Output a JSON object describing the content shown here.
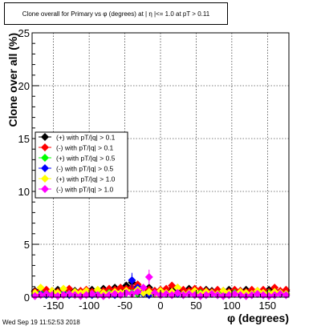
{
  "chart_data": {
    "type": "scatter",
    "title": "Clone  overall for Primary vs φ (degrees) at | η |<= 1.0 at pT > 0.11",
    "xlabel": "φ (degrees)",
    "ylabel": "Clone  over all (%)",
    "xlim": [
      -180,
      180
    ],
    "ylim": [
      0,
      25
    ],
    "xticks": [
      -150,
      -100,
      -50,
      0,
      50,
      100,
      150
    ],
    "yticks": [
      0,
      5,
      10,
      15,
      20,
      25
    ],
    "grid": true,
    "legend_position": "middle-left",
    "x": [
      -176,
      -168,
      -160,
      -152,
      -144,
      -136,
      -128,
      -120,
      -112,
      -104,
      -96,
      -88,
      -80,
      -72,
      -64,
      -56,
      -48,
      -40,
      -32,
      -24,
      -16,
      -8,
      0,
      8,
      16,
      24,
      32,
      40,
      48,
      56,
      64,
      72,
      80,
      88,
      96,
      104,
      112,
      120,
      128,
      136,
      144,
      152,
      160,
      168,
      176
    ],
    "series": [
      {
        "name": "(+) with pT/|q| > 0.1",
        "color": "#000000",
        "values": [
          0.6,
          0.7,
          0.6,
          0.5,
          0.7,
          0.6,
          0.7,
          0.6,
          0.5,
          0.6,
          0.7,
          0.6,
          0.8,
          0.7,
          0.9,
          0.8,
          1.1,
          1.4,
          1.0,
          0.7,
          0.9,
          0.6,
          0.5,
          0.6,
          0.8,
          0.7,
          0.6,
          0.8,
          0.6,
          0.5,
          0.7,
          0.6,
          0.5,
          0.6,
          0.7,
          0.5,
          0.6,
          0.7,
          0.6,
          0.5,
          0.6,
          0.7,
          0.6,
          0.5,
          0.6
        ]
      },
      {
        "name": "(-) with pT/|q| > 0.1",
        "color": "#ff0000",
        "values": [
          0.5,
          0.6,
          0.7,
          0.6,
          0.5,
          0.6,
          0.8,
          0.5,
          0.6,
          0.7,
          0.5,
          0.6,
          0.6,
          0.8,
          0.7,
          0.9,
          0.8,
          0.9,
          1.2,
          0.8,
          0.7,
          0.6,
          0.7,
          0.8,
          1.1,
          0.9,
          0.7,
          0.6,
          0.8,
          0.7,
          0.6,
          0.5,
          0.7,
          0.6,
          0.5,
          0.7,
          0.6,
          0.5,
          0.7,
          0.6,
          0.7,
          0.5,
          0.9,
          0.6,
          0.7
        ]
      },
      {
        "name": "(+) with pT/|q| > 0.5",
        "color": "#00ff00",
        "values": [
          0.3,
          0.4,
          0.3,
          0.4,
          0.3,
          0.4,
          0.3,
          0.4,
          0.3,
          0.4,
          0.3,
          0.4,
          0.3,
          0.4,
          0.3,
          0.4,
          0.5,
          0.4,
          0.3,
          0.4,
          0.3,
          0.4,
          0.3,
          0.4,
          0.3,
          0.4,
          0.3,
          0.4,
          0.3,
          0.4,
          0.3,
          0.4,
          0.3,
          0.4,
          0.3,
          0.4,
          0.3,
          0.4,
          0.3,
          0.4,
          0.3,
          0.4,
          0.3,
          0.4,
          0.3
        ]
      },
      {
        "name": "(-) with pT/|q| > 0.5",
        "color": "#0000ff",
        "values": [
          0.2,
          0.3,
          0.2,
          0.3,
          0.2,
          0.3,
          0.2,
          0.3,
          0.2,
          0.3,
          0.2,
          0.3,
          0.2,
          0.3,
          0.2,
          0.3,
          0.4,
          1.6,
          0.9,
          0.3,
          0.2,
          0.3,
          0.2,
          0.3,
          0.2,
          0.3,
          0.2,
          0.3,
          0.2,
          0.3,
          0.2,
          0.3,
          0.2,
          0.3,
          0.2,
          0.3,
          0.2,
          0.3,
          0.2,
          0.3,
          0.2,
          0.3,
          0.2,
          0.3,
          0.2
        ]
      },
      {
        "name": "(+) with pT/|q| > 1.0",
        "color": "#ffff00",
        "values": [
          0.4,
          0.9,
          0.3,
          0.6,
          0.4,
          0.8,
          0.3,
          0.5,
          0.4,
          0.6,
          0.3,
          0.7,
          0.4,
          0.3,
          0.5,
          0.4,
          0.6,
          0.3,
          0.7,
          0.4,
          0.5,
          0.3,
          0.6,
          0.4,
          0.5,
          0.9,
          0.3,
          0.4,
          0.6,
          0.3,
          0.5,
          0.4,
          0.3,
          0.6,
          0.4,
          0.3,
          0.5,
          0.4,
          0.3,
          0.6,
          0.4,
          0.3,
          0.5,
          0.4,
          0.3
        ]
      },
      {
        "name": "(-) with pT/|q| > 1.0",
        "color": "#ff00ff",
        "values": [
          0.1,
          0.2,
          0.3,
          0.2,
          0.1,
          0.2,
          0.3,
          0.2,
          0.1,
          0.2,
          0.3,
          0.2,
          0.1,
          0.2,
          0.3,
          0.2,
          0.4,
          0.3,
          0.5,
          0.9,
          1.9,
          0.4,
          0.2,
          0.3,
          0.2,
          0.4,
          0.2,
          0.3,
          0.2,
          0.1,
          0.2,
          0.3,
          0.2,
          0.1,
          0.2,
          0.3,
          0.2,
          0.1,
          0.2,
          0.3,
          0.2,
          0.1,
          0.2,
          0.3,
          0.2
        ]
      }
    ]
  },
  "footer": {
    "timestamp": "Wed Sep 19 11:52:53 2018"
  }
}
